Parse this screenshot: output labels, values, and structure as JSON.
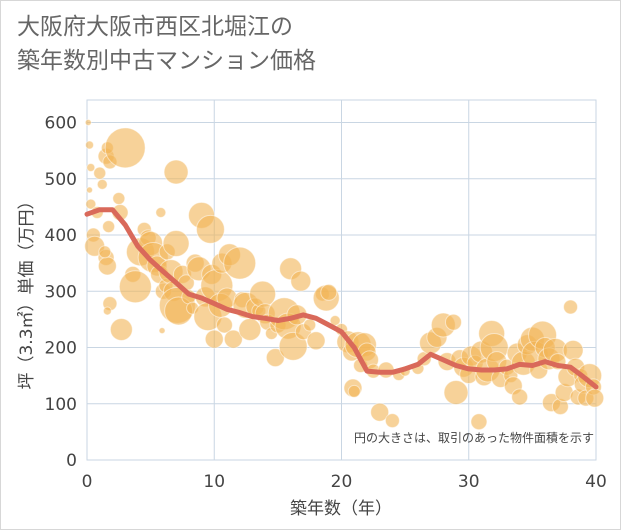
{
  "chart_data": {
    "type": "scatter",
    "title_lines": [
      "大阪府大阪市西区北堀江の",
      "築年数別中古マンション価格"
    ],
    "xlabel": "築年数（年）",
    "ylabel": "坪（3.3㎡）単価（万円）",
    "xlim": [
      0,
      40
    ],
    "ylim": [
      0,
      640
    ],
    "xticks": [
      "0",
      "10",
      "20",
      "30",
      "40"
    ],
    "yticks": [
      "0",
      "100",
      "200",
      "300",
      "400",
      "500",
      "600"
    ],
    "xtick_values": [
      0,
      10,
      20,
      30,
      40
    ],
    "ytick_values": [
      0,
      100,
      200,
      300,
      400,
      500,
      600
    ],
    "grid": true,
    "annotation": "円の大きさは、取引のあった物件面積を示す",
    "colors": {
      "bubble": "#f2b455",
      "line": "#d9695a",
      "grid": "#c9d6e3"
    },
    "trend": {
      "x": [
        0,
        1,
        2,
        3,
        4,
        5,
        6,
        7,
        8,
        9,
        10,
        11,
        12,
        13,
        14,
        15,
        16,
        17,
        18,
        19,
        20,
        21,
        22,
        23,
        24,
        25,
        26,
        27,
        28,
        29,
        30,
        31,
        32,
        33,
        34,
        35,
        36,
        37,
        38,
        39,
        40
      ],
      "y": [
        437,
        445,
        445,
        418,
        380,
        355,
        335,
        315,
        295,
        288,
        278,
        268,
        262,
        255,
        252,
        248,
        252,
        258,
        252,
        240,
        228,
        200,
        158,
        156,
        156,
        162,
        170,
        188,
        178,
        168,
        162,
        160,
        160,
        162,
        170,
        168,
        175,
        168,
        165,
        148,
        130
      ]
    },
    "points": [
      {
        "x": 0.1,
        "y": 600,
        "s": 3
      },
      {
        "x": 0.2,
        "y": 560,
        "s": 4
      },
      {
        "x": 0.3,
        "y": 520,
        "s": 4
      },
      {
        "x": 0.2,
        "y": 480,
        "s": 3
      },
      {
        "x": 0.3,
        "y": 455,
        "s": 5
      },
      {
        "x": 0.5,
        "y": 400,
        "s": 7
      },
      {
        "x": 0.6,
        "y": 380,
        "s": 10
      },
      {
        "x": 0.8,
        "y": 440,
        "s": 6
      },
      {
        "x": 1.0,
        "y": 510,
        "s": 6
      },
      {
        "x": 1.2,
        "y": 490,
        "s": 5
      },
      {
        "x": 1.5,
        "y": 540,
        "s": 8
      },
      {
        "x": 1.6,
        "y": 555,
        "s": 6
      },
      {
        "x": 1.8,
        "y": 530,
        "s": 7
      },
      {
        "x": 1.7,
        "y": 415,
        "s": 6
      },
      {
        "x": 1.5,
        "y": 360,
        "s": 8
      },
      {
        "x": 1.6,
        "y": 345,
        "s": 9
      },
      {
        "x": 1.4,
        "y": 370,
        "s": 6
      },
      {
        "x": 1.8,
        "y": 278,
        "s": 7
      },
      {
        "x": 1.6,
        "y": 265,
        "s": 4
      },
      {
        "x": 2.5,
        "y": 465,
        "s": 6
      },
      {
        "x": 2.6,
        "y": 440,
        "s": 8
      },
      {
        "x": 3.0,
        "y": 555,
        "s": 20
      },
      {
        "x": 2.7,
        "y": 232,
        "s": 11
      },
      {
        "x": 3.6,
        "y": 330,
        "s": 8
      },
      {
        "x": 3.8,
        "y": 308,
        "s": 16
      },
      {
        "x": 4.2,
        "y": 370,
        "s": 14
      },
      {
        "x": 4.5,
        "y": 410,
        "s": 7
      },
      {
        "x": 4.8,
        "y": 395,
        "s": 8
      },
      {
        "x": 5.0,
        "y": 385,
        "s": 12
      },
      {
        "x": 5.2,
        "y": 360,
        "s": 15
      },
      {
        "x": 5.5,
        "y": 345,
        "s": 10
      },
      {
        "x": 5.7,
        "y": 330,
        "s": 9
      },
      {
        "x": 5.8,
        "y": 440,
        "s": 5
      },
      {
        "x": 6.0,
        "y": 300,
        "s": 8
      },
      {
        "x": 5.9,
        "y": 230,
        "s": 3
      },
      {
        "x": 6.2,
        "y": 310,
        "s": 7
      },
      {
        "x": 6.3,
        "y": 370,
        "s": 8
      },
      {
        "x": 6.6,
        "y": 335,
        "s": 12
      },
      {
        "x": 6.8,
        "y": 300,
        "s": 10
      },
      {
        "x": 7.0,
        "y": 385,
        "s": 13
      },
      {
        "x": 7.0,
        "y": 512,
        "s": 12
      },
      {
        "x": 7.1,
        "y": 275,
        "s": 18
      },
      {
        "x": 7.2,
        "y": 265,
        "s": 14
      },
      {
        "x": 7.5,
        "y": 330,
        "s": 9
      },
      {
        "x": 7.8,
        "y": 315,
        "s": 8
      },
      {
        "x": 8.0,
        "y": 290,
        "s": 7
      },
      {
        "x": 8.3,
        "y": 270,
        "s": 6
      },
      {
        "x": 8.5,
        "y": 350,
        "s": 9
      },
      {
        "x": 8.8,
        "y": 340,
        "s": 12
      },
      {
        "x": 9.0,
        "y": 435,
        "s": 13
      },
      {
        "x": 9.3,
        "y": 290,
        "s": 10
      },
      {
        "x": 9.5,
        "y": 255,
        "s": 14
      },
      {
        "x": 9.7,
        "y": 410,
        "s": 14
      },
      {
        "x": 9.8,
        "y": 330,
        "s": 10
      },
      {
        "x": 10.0,
        "y": 215,
        "s": 9
      },
      {
        "x": 10.2,
        "y": 310,
        "s": 16
      },
      {
        "x": 10.5,
        "y": 275,
        "s": 12
      },
      {
        "x": 10.6,
        "y": 350,
        "s": 10
      },
      {
        "x": 10.8,
        "y": 240,
        "s": 8
      },
      {
        "x": 11.0,
        "y": 288,
        "s": 10
      },
      {
        "x": 11.2,
        "y": 365,
        "s": 11
      },
      {
        "x": 11.5,
        "y": 215,
        "s": 9
      },
      {
        "x": 12.0,
        "y": 350,
        "s": 16
      },
      {
        "x": 12.2,
        "y": 285,
        "s": 8
      },
      {
        "x": 12.5,
        "y": 275,
        "s": 13
      },
      {
        "x": 12.8,
        "y": 232,
        "s": 11
      },
      {
        "x": 13.2,
        "y": 272,
        "s": 9
      },
      {
        "x": 13.5,
        "y": 265,
        "s": 7
      },
      {
        "x": 13.8,
        "y": 295,
        "s": 13
      },
      {
        "x": 14.0,
        "y": 260,
        "s": 10
      },
      {
        "x": 14.2,
        "y": 245,
        "s": 8
      },
      {
        "x": 14.5,
        "y": 225,
        "s": 6
      },
      {
        "x": 14.8,
        "y": 182,
        "s": 9
      },
      {
        "x": 15.0,
        "y": 240,
        "s": 8
      },
      {
        "x": 15.5,
        "y": 260,
        "s": 16
      },
      {
        "x": 15.8,
        "y": 238,
        "s": 13
      },
      {
        "x": 16.0,
        "y": 340,
        "s": 11
      },
      {
        "x": 16.2,
        "y": 202,
        "s": 14
      },
      {
        "x": 16.5,
        "y": 258,
        "s": 10
      },
      {
        "x": 16.8,
        "y": 318,
        "s": 10
      },
      {
        "x": 17.0,
        "y": 228,
        "s": 8
      },
      {
        "x": 17.5,
        "y": 240,
        "s": 6
      },
      {
        "x": 18.0,
        "y": 212,
        "s": 9
      },
      {
        "x": 18.5,
        "y": 295,
        "s": 7
      },
      {
        "x": 18.8,
        "y": 288,
        "s": 13
      },
      {
        "x": 19.0,
        "y": 298,
        "s": 8
      },
      {
        "x": 19.5,
        "y": 248,
        "s": 5
      },
      {
        "x": 20.0,
        "y": 232,
        "s": 6
      },
      {
        "x": 20.5,
        "y": 210,
        "s": 11
      },
      {
        "x": 20.8,
        "y": 192,
        "s": 9
      },
      {
        "x": 20.9,
        "y": 128,
        "s": 9
      },
      {
        "x": 21.0,
        "y": 122,
        "s": 6
      },
      {
        "x": 21.3,
        "y": 205,
        "s": 13
      },
      {
        "x": 21.5,
        "y": 168,
        "s": 7
      },
      {
        "x": 21.8,
        "y": 205,
        "s": 12
      },
      {
        "x": 22.0,
        "y": 192,
        "s": 9
      },
      {
        "x": 22.2,
        "y": 178,
        "s": 9
      },
      {
        "x": 22.5,
        "y": 158,
        "s": 7
      },
      {
        "x": 23.0,
        "y": 85,
        "s": 9
      },
      {
        "x": 23.5,
        "y": 160,
        "s": 8
      },
      {
        "x": 24.0,
        "y": 70,
        "s": 7
      },
      {
        "x": 24.5,
        "y": 152,
        "s": 6
      },
      {
        "x": 25.0,
        "y": 158,
        "s": 5
      },
      {
        "x": 26.0,
        "y": 163,
        "s": 6
      },
      {
        "x": 26.5,
        "y": 180,
        "s": 7
      },
      {
        "x": 27.0,
        "y": 208,
        "s": 11
      },
      {
        "x": 27.5,
        "y": 218,
        "s": 10
      },
      {
        "x": 28.0,
        "y": 240,
        "s": 12
      },
      {
        "x": 28.3,
        "y": 175,
        "s": 9
      },
      {
        "x": 28.8,
        "y": 245,
        "s": 8
      },
      {
        "x": 29.0,
        "y": 120,
        "s": 12
      },
      {
        "x": 29.3,
        "y": 180,
        "s": 9
      },
      {
        "x": 29.6,
        "y": 165,
        "s": 10
      },
      {
        "x": 30.0,
        "y": 152,
        "s": 9
      },
      {
        "x": 30.2,
        "y": 185,
        "s": 10
      },
      {
        "x": 30.5,
        "y": 172,
        "s": 8
      },
      {
        "x": 30.8,
        "y": 68,
        "s": 8
      },
      {
        "x": 31.0,
        "y": 192,
        "s": 11
      },
      {
        "x": 31.2,
        "y": 148,
        "s": 9
      },
      {
        "x": 31.5,
        "y": 160,
        "s": 12
      },
      {
        "x": 31.8,
        "y": 225,
        "s": 13
      },
      {
        "x": 32.0,
        "y": 200,
        "s": 14
      },
      {
        "x": 32.2,
        "y": 175,
        "s": 10
      },
      {
        "x": 32.5,
        "y": 145,
        "s": 9
      },
      {
        "x": 33.0,
        "y": 165,
        "s": 8
      },
      {
        "x": 33.3,
        "y": 150,
        "s": 7
      },
      {
        "x": 33.5,
        "y": 132,
        "s": 9
      },
      {
        "x": 33.8,
        "y": 190,
        "s": 10
      },
      {
        "x": 34.0,
        "y": 112,
        "s": 8
      },
      {
        "x": 34.3,
        "y": 172,
        "s": 12
      },
      {
        "x": 34.6,
        "y": 205,
        "s": 10
      },
      {
        "x": 35.0,
        "y": 215,
        "s": 12
      },
      {
        "x": 35.2,
        "y": 188,
        "s": 13
      },
      {
        "x": 35.5,
        "y": 160,
        "s": 9
      },
      {
        "x": 35.8,
        "y": 222,
        "s": 14
      },
      {
        "x": 36.0,
        "y": 200,
        "s": 10
      },
      {
        "x": 36.3,
        "y": 180,
        "s": 11
      },
      {
        "x": 36.5,
        "y": 102,
        "s": 9
      },
      {
        "x": 36.8,
        "y": 195,
        "s": 12
      },
      {
        "x": 37.0,
        "y": 175,
        "s": 8
      },
      {
        "x": 37.2,
        "y": 95,
        "s": 8
      },
      {
        "x": 37.5,
        "y": 120,
        "s": 9
      },
      {
        "x": 37.8,
        "y": 148,
        "s": 10
      },
      {
        "x": 38.0,
        "y": 272,
        "s": 7
      },
      {
        "x": 38.2,
        "y": 195,
        "s": 10
      },
      {
        "x": 38.4,
        "y": 165,
        "s": 9
      },
      {
        "x": 38.6,
        "y": 112,
        "s": 8
      },
      {
        "x": 38.8,
        "y": 150,
        "s": 7
      },
      {
        "x": 39.0,
        "y": 135,
        "s": 9
      },
      {
        "x": 39.2,
        "y": 110,
        "s": 8
      },
      {
        "x": 39.5,
        "y": 150,
        "s": 12
      },
      {
        "x": 39.8,
        "y": 130,
        "s": 8
      },
      {
        "x": 39.9,
        "y": 110,
        "s": 9
      }
    ]
  }
}
